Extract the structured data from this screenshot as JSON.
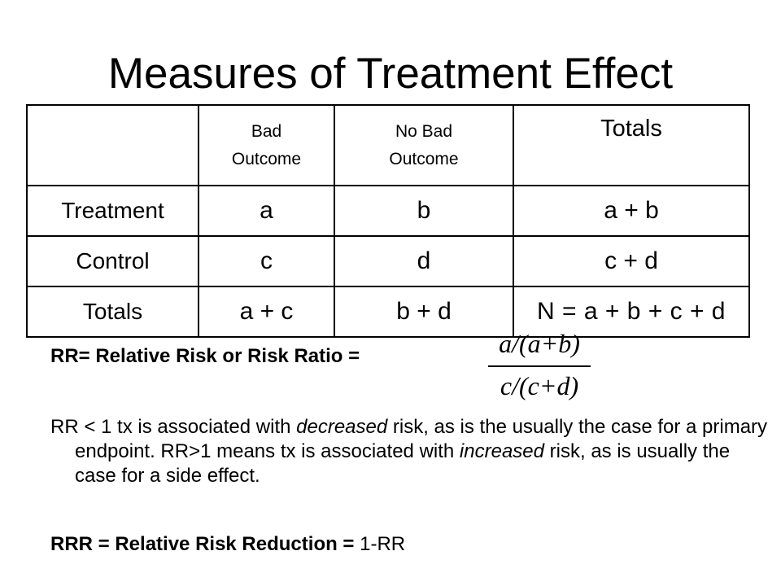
{
  "title": "Measures of Treatment Effect",
  "table": {
    "headers": [
      "",
      "Bad Outcome",
      "No Bad Outcome",
      "Totals"
    ],
    "header_lines": {
      "bad_outcome": [
        "Bad",
        "Outcome"
      ],
      "no_bad_outcome": [
        "No Bad",
        "Outcome"
      ]
    },
    "rows": [
      {
        "label": "Treatment",
        "cells": [
          "a",
          "b",
          "a + b"
        ]
      },
      {
        "label": "Control",
        "cells": [
          "c",
          "d",
          "c + d"
        ]
      },
      {
        "label": "Totals",
        "cells": [
          "a + c",
          "b + d",
          "N = a + b + c + d"
        ]
      }
    ]
  },
  "rr": {
    "label": "RR= Relative Risk or Risk Ratio =",
    "formula_numerator": "a/(a+b)",
    "formula_denominator": "c/(c+d)"
  },
  "explanation": {
    "part1": "RR < 1 tx is associated with ",
    "em1": "decreased",
    "part2": " risk, as is the usually the case for a primary endpoint.  RR>1 means tx is associated with ",
    "em2": "increased",
    "part3": " risk, as is usually the case for a side effect."
  },
  "rrr": {
    "label": "RRR = Relative Risk Reduction = ",
    "value": "1-RR"
  }
}
